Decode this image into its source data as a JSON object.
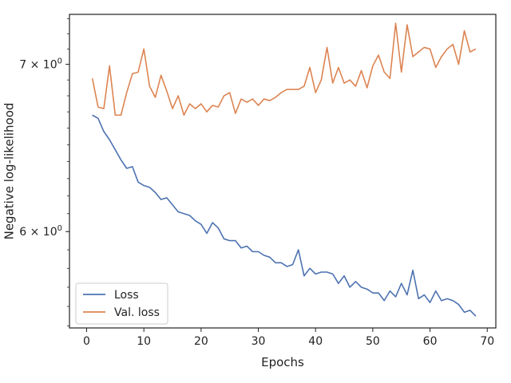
{
  "chart_data": {
    "type": "line",
    "title": "",
    "xlabel": "Epochs",
    "ylabel": "Negative log-likelihood",
    "xlim": [
      -3,
      71.5
    ],
    "ylim": [
      5.49,
      7.33
    ],
    "yscale": "log",
    "x_ticks": [
      0,
      10,
      20,
      30,
      40,
      50,
      60,
      70
    ],
    "x_tick_labels": [
      "0",
      "10",
      "20",
      "30",
      "40",
      "50",
      "60",
      "70"
    ],
    "y_ticks": [
      6,
      7
    ],
    "y_tick_labels": [
      "6 × 10⁰",
      "7 × 10⁰"
    ],
    "grid": false,
    "legend_position": "lower-left",
    "x": [
      1,
      2,
      3,
      4,
      5,
      6,
      7,
      8,
      9,
      10,
      11,
      12,
      13,
      14,
      15,
      16,
      17,
      18,
      19,
      20,
      21,
      22,
      23,
      24,
      25,
      26,
      27,
      28,
      29,
      30,
      31,
      32,
      33,
      34,
      35,
      36,
      37,
      38,
      39,
      40,
      41,
      42,
      43,
      44,
      45,
      46,
      47,
      48,
      49,
      50,
      51,
      52,
      53,
      54,
      55,
      56,
      57,
      58,
      59,
      60,
      61,
      62,
      63,
      64,
      65,
      66,
      67,
      68
    ],
    "series": [
      {
        "name": "Loss",
        "color": "#4c72b0",
        "values": [
          6.68,
          6.66,
          6.58,
          6.53,
          6.47,
          6.41,
          6.36,
          6.37,
          6.28,
          6.26,
          6.25,
          6.22,
          6.18,
          6.19,
          6.15,
          6.11,
          6.1,
          6.09,
          6.06,
          6.04,
          5.99,
          6.05,
          6.02,
          5.96,
          5.95,
          5.95,
          5.91,
          5.92,
          5.89,
          5.89,
          5.87,
          5.86,
          5.83,
          5.83,
          5.81,
          5.82,
          5.9,
          5.76,
          5.8,
          5.77,
          5.78,
          5.78,
          5.77,
          5.72,
          5.76,
          5.7,
          5.73,
          5.7,
          5.69,
          5.67,
          5.67,
          5.63,
          5.68,
          5.65,
          5.72,
          5.66,
          5.79,
          5.64,
          5.66,
          5.62,
          5.68,
          5.63,
          5.64,
          5.63,
          5.61,
          5.57,
          5.58,
          5.55
        ]
      },
      {
        "name": "Val. loss",
        "color": "#dd8452",
        "values": [
          6.91,
          6.73,
          6.72,
          6.99,
          6.68,
          6.68,
          6.82,
          6.94,
          6.95,
          7.1,
          6.86,
          6.79,
          6.93,
          6.83,
          6.72,
          6.8,
          6.68,
          6.75,
          6.72,
          6.75,
          6.7,
          6.74,
          6.73,
          6.8,
          6.82,
          6.69,
          6.78,
          6.76,
          6.78,
          6.74,
          6.78,
          6.77,
          6.79,
          6.82,
          6.84,
          6.84,
          6.84,
          6.86,
          6.98,
          6.82,
          6.9,
          7.11,
          6.88,
          6.98,
          6.88,
          6.9,
          6.86,
          6.96,
          6.85,
          6.99,
          7.06,
          6.95,
          6.91,
          7.27,
          6.95,
          7.26,
          7.05,
          7.08,
          7.11,
          7.1,
          6.98,
          7.05,
          7.1,
          7.13,
          7.0,
          7.22,
          7.08,
          7.1
        ]
      }
    ]
  }
}
